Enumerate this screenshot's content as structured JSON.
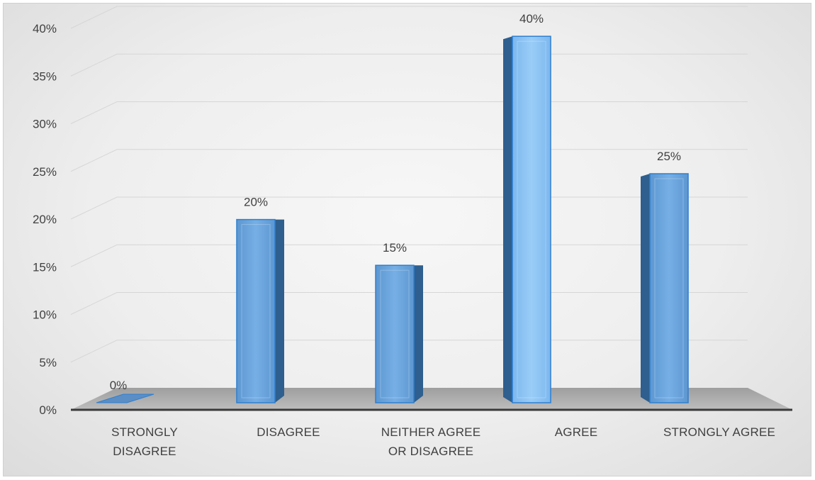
{
  "chart_data": {
    "type": "bar",
    "categories": [
      "STRONGLY DISAGREE",
      "DISAGREE",
      "NEITHER AGREE OR DISAGREE",
      "AGREE",
      "STRONGLY AGREE"
    ],
    "category_lines": [
      [
        "STRONGLY",
        "DISAGREE"
      ],
      [
        "DISAGREE"
      ],
      [
        "NEITHER AGREE",
        "OR DISAGREE"
      ],
      [
        "AGREE"
      ],
      [
        "STRONGLY AGREE"
      ]
    ],
    "values": [
      0,
      20,
      15,
      40,
      25
    ],
    "data_labels": [
      "0%",
      "20%",
      "15%",
      "40%",
      "25%"
    ],
    "y_ticks": [
      "0%",
      "5%",
      "10%",
      "15%",
      "20%",
      "25%",
      "30%",
      "35%",
      "40%"
    ],
    "ylim": [
      0,
      40
    ],
    "title": "",
    "xlabel": "",
    "ylabel": "",
    "grid": true,
    "legend": "none",
    "colors": {
      "bar_front": "#6ea6dd",
      "bar_front_highlight": "#8fc4f2",
      "bar_side": "#2e5f8e",
      "bar_edge": "#2f7fd0",
      "floor": "#a8a8a8",
      "gridline": "#d6d6d6",
      "text": "#404040"
    }
  }
}
